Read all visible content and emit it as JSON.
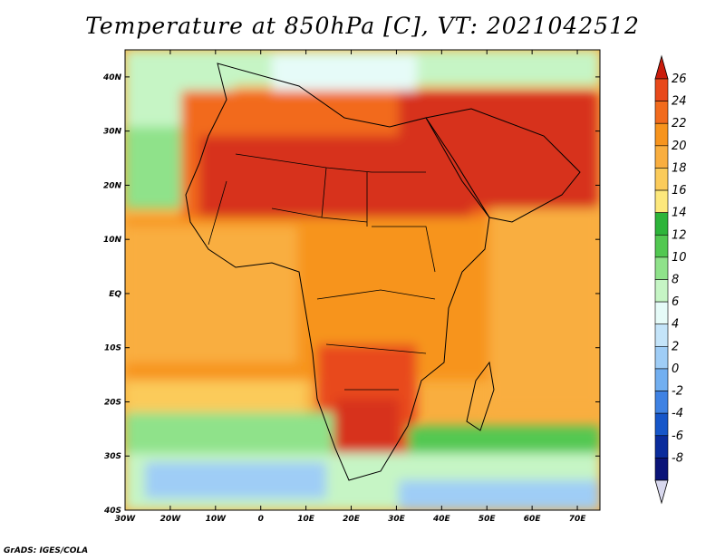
{
  "title": "Temperature at 850hPa [C], VT: 2021042512",
  "footer": "GrADS: IGES/COLA",
  "map": {
    "lon_labels": [
      "30W",
      "20W",
      "10W",
      "0",
      "10E",
      "20E",
      "30E",
      "40E",
      "50E",
      "60E",
      "70E"
    ],
    "lat_labels": [
      "40N",
      "30N",
      "20N",
      "10N",
      "EQ",
      "10S",
      "20S",
      "30S",
      "40S"
    ],
    "lon_range": [
      -30,
      75
    ],
    "lat_range": [
      -40,
      45
    ]
  },
  "colorbar": {
    "levels": [
      "26",
      "24",
      "22",
      "20",
      "18",
      "16",
      "14",
      "12",
      "10",
      "8",
      "6",
      "4",
      "2",
      "0",
      "-2",
      "-4",
      "-6",
      "-8"
    ],
    "colors": [
      "#d7301f",
      "#e8491b",
      "#f26b1d",
      "#f7941d",
      "#f9ae3f",
      "#fbcb5a",
      "#fde87c",
      "#2db43a",
      "#52c851",
      "#8fe28a",
      "#c6f5c5",
      "#e6fbf8",
      "#c4e4f9",
      "#9fcdf6",
      "#72aff0",
      "#3f82e3",
      "#1656c9",
      "#0a2c9c",
      "#0a1478",
      "#dcdcf2"
    ],
    "top_color": "#c91c0c",
    "bottom_color": "#d8d8ee"
  },
  "regions": {
    "ocean_north_color": "#e6fbf8",
    "sahara_color": "#d7301f",
    "tropics_color": "#f7941d",
    "south_atlantic_color": "#8fe28a",
    "southern_ocean_color": "#9fcdf6"
  }
}
